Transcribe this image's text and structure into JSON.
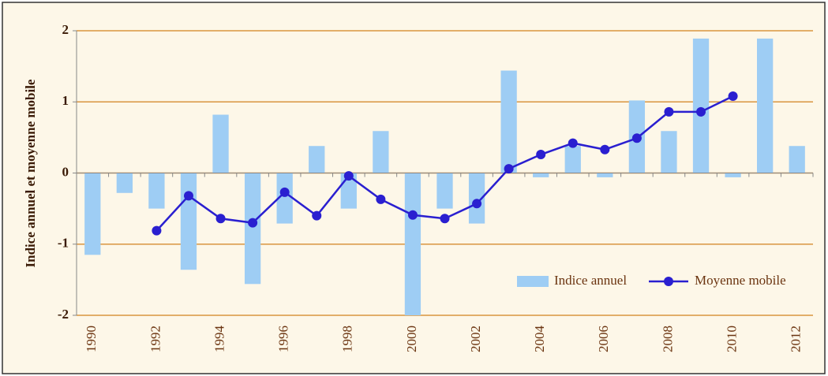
{
  "chart_data": {
    "type": "bar_line",
    "ylabel": "Indice annuel et moyenne mobile",
    "categories": [
      1990,
      null,
      1992,
      null,
      1994,
      null,
      1996,
      null,
      1998,
      null,
      2000,
      null,
      2002,
      null,
      2004,
      null,
      2006,
      null,
      2008,
      null,
      2010,
      null,
      2012
    ],
    "series": [
      {
        "name": "Indice annuel",
        "type": "bar",
        "color": "#9ecdf4",
        "values": [
          -1.15,
          -0.28,
          -0.5,
          -1.36,
          0.82,
          -1.56,
          -0.71,
          0.38,
          -0.5,
          0.59,
          -2.0,
          -0.5,
          -0.71,
          1.44,
          -0.06,
          0.38,
          -0.06,
          1.02,
          0.59,
          1.89,
          -0.06,
          1.89,
          0.38
        ]
      },
      {
        "name": "Moyenne mobile",
        "type": "line",
        "color": "#2a1fd0",
        "values": [
          null,
          null,
          -0.81,
          -0.32,
          -0.64,
          -0.7,
          -0.27,
          -0.6,
          -0.04,
          -0.37,
          -0.59,
          -0.64,
          -0.43,
          0.06,
          0.26,
          0.42,
          0.33,
          0.49,
          0.86,
          0.86,
          1.08,
          null,
          null
        ]
      }
    ],
    "ylim": [
      -2,
      2
    ],
    "yticks": [
      -2,
      -1,
      0,
      1,
      2
    ],
    "grid": true,
    "legend": "lower right"
  }
}
